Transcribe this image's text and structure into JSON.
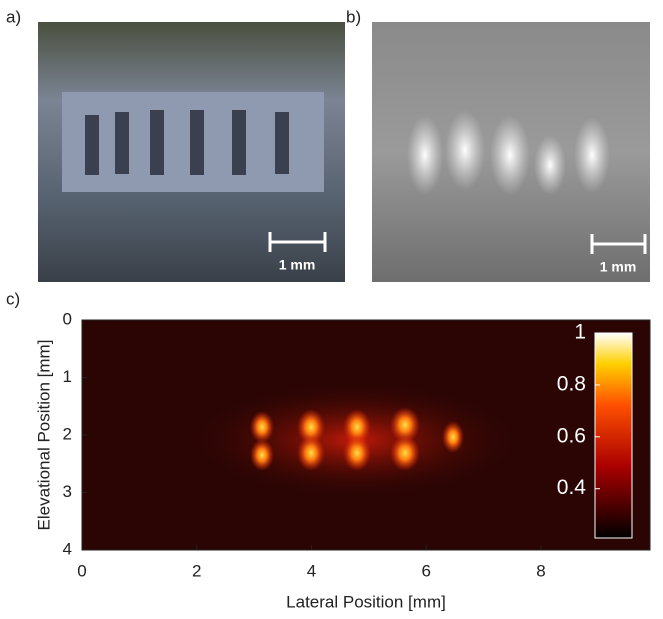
{
  "panels": {
    "a": {
      "label": "a)",
      "scale_bar": "1 mm"
    },
    "b": {
      "label": "b)",
      "scale_bar": "1 mm"
    }
  },
  "chart_data": {
    "type": "heatmap",
    "label": "c)",
    "xlabel": "Lateral Position [mm]",
    "ylabel": "Elevational Position [mm]",
    "xlim": [
      0,
      9.9
    ],
    "ylim": [
      4,
      0
    ],
    "xticks": [
      0,
      2,
      4,
      6,
      8
    ],
    "yticks": [
      0,
      1,
      2,
      3,
      4
    ],
    "colorbar": {
      "lim": [
        0.21,
        1
      ],
      "ticks": [
        0.4,
        0.6,
        0.8,
        1
      ]
    }
  }
}
